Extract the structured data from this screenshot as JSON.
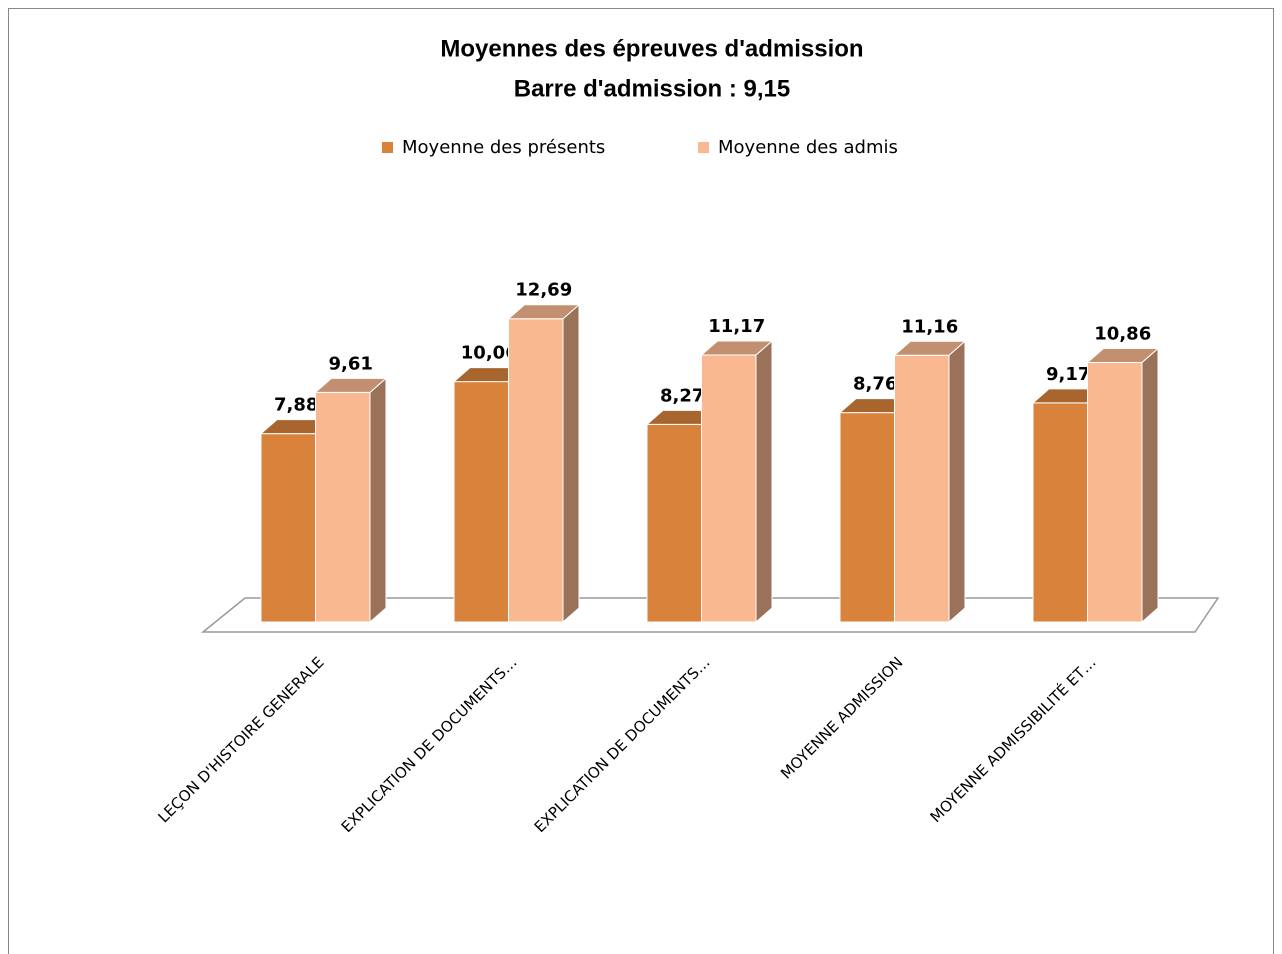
{
  "chart_data": {
    "type": "bar3d",
    "title": "Moyennes des épreuves d'admission",
    "subtitle": "Barre d'admission : 9,15",
    "categories": [
      "LEÇON D'HISTOIRE GENERALE",
      "EXPLICATION DE DOCUMENTS…",
      "EXPLICATION DE DOCUMENTS…",
      "MOYENNE ADMISSION",
      "MOYENNE ADMISSIBILITÉ ET…"
    ],
    "series": [
      {
        "name": "Moyenne des présents",
        "color": "#d9823b",
        "values": [
          7.88,
          10.06,
          8.27,
          8.76,
          9.17
        ],
        "value_labels": [
          "7,88",
          "10,06",
          "8,27",
          "8,76",
          "9,17"
        ]
      },
      {
        "name": "Moyenne des admis",
        "color": "#f9b88f",
        "values": [
          9.61,
          12.69,
          11.17,
          11.16,
          10.86
        ],
        "value_labels": [
          "9,61",
          "12,69",
          "11,17",
          "11,16",
          "10,86"
        ]
      }
    ]
  }
}
